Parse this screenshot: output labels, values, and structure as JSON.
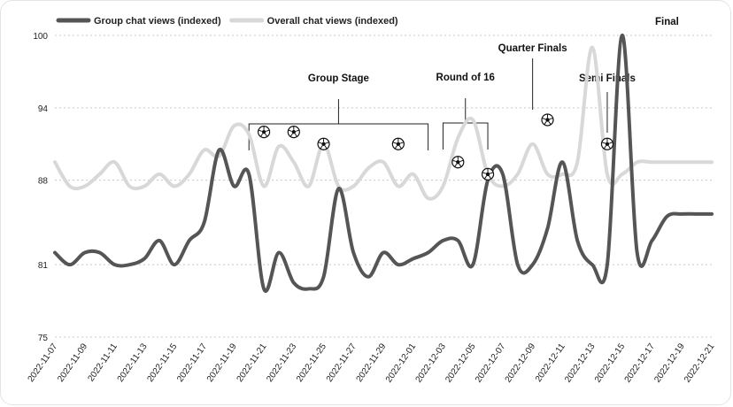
{
  "chart_data": {
    "type": "line",
    "title": "",
    "xlabel": "",
    "ylabel": "",
    "ylim": [
      75,
      100
    ],
    "yticks": [
      75,
      81,
      88,
      94,
      100
    ],
    "grid": "horizontal dotted",
    "legend_position": "top-left",
    "x": [
      "2022-11-07",
      "2022-11-08",
      "2022-11-09",
      "2022-11-10",
      "2022-11-11",
      "2022-11-12",
      "2022-11-13",
      "2022-11-14",
      "2022-11-15",
      "2022-11-16",
      "2022-11-17",
      "2022-11-18",
      "2022-11-19",
      "2022-11-20",
      "2022-11-21",
      "2022-11-22",
      "2022-11-23",
      "2022-11-24",
      "2022-11-25",
      "2022-11-26",
      "2022-11-27",
      "2022-11-28",
      "2022-11-29",
      "2022-11-30",
      "2022-12-01",
      "2022-12-02",
      "2022-12-03",
      "2022-12-04",
      "2022-12-05",
      "2022-12-06",
      "2022-12-07",
      "2022-12-08",
      "2022-12-09",
      "2022-12-10",
      "2022-12-11",
      "2022-12-12",
      "2022-12-13",
      "2022-12-14",
      "2022-12-15",
      "2022-12-16",
      "2022-12-17",
      "2022-12-18",
      "2022-12-19",
      "2022-12-20",
      "2022-12-21"
    ],
    "xtick_labels": [
      "2022-11-07",
      "2022-11-09",
      "2022-11-11",
      "2022-11-13",
      "2022-11-15",
      "2022-11-17",
      "2022-11-19",
      "2022-11-21",
      "2022-11-23",
      "2022-11-25",
      "2022-11-27",
      "2022-11-29",
      "2022-12-01",
      "2022-12-03",
      "2022-12-05",
      "2022-12-07",
      "2022-12-09",
      "2022-12-11",
      "2022-12-13",
      "2022-12-15",
      "2022-12-17",
      "2022-12-19",
      "2022-12-21"
    ],
    "series": [
      {
        "name": "Group chat views (indexed)",
        "color": "#555555",
        "values": [
          82.0,
          81.0,
          82.0,
          82.0,
          81.0,
          81.0,
          81.5,
          83.0,
          81.0,
          83.0,
          84.5,
          90.5,
          87.5,
          88.5,
          79.0,
          82.0,
          79.5,
          79.0,
          80.0,
          87.3,
          82.0,
          80.0,
          82.0,
          81.0,
          81.5,
          82.0,
          83.0,
          83.0,
          81.0,
          88.0,
          88.5,
          81.0,
          81.0,
          84.0,
          89.5,
          83.0,
          81.0,
          81.0,
          100.0,
          82.0,
          83.0,
          85.0,
          85.2,
          85.2,
          85.2
        ]
      },
      {
        "name": "Overall chat views (indexed)",
        "color": "#d8d8d8",
        "values": [
          89.5,
          87.5,
          87.5,
          88.5,
          89.5,
          87.5,
          87.5,
          88.5,
          87.5,
          88.5,
          90.5,
          90.0,
          92.5,
          91.8,
          87.5,
          90.8,
          89.5,
          87.5,
          91.0,
          87.5,
          87.5,
          89.0,
          89.5,
          87.5,
          88.5,
          86.5,
          87.5,
          91.5,
          93.0,
          88.5,
          87.5,
          88.5,
          91.0,
          88.5,
          88.5,
          89.5,
          99.0,
          88.5,
          88.5,
          89.5,
          89.5,
          89.5,
          89.5,
          89.5,
          89.5
        ]
      }
    ],
    "annotations": [
      {
        "label": "Group Stage",
        "from": "2022-11-20",
        "to": "2022-12-02"
      },
      {
        "label": "Round of 16",
        "from": "2022-12-03",
        "to": "2022-12-06"
      },
      {
        "label": "Quarter Finals",
        "at": "2022-12-09"
      },
      {
        "label": "Semi Finals",
        "at": "2022-12-14"
      },
      {
        "label": "Final",
        "at": "2022-12-18"
      }
    ],
    "match_marker_icon": "soccer-ball-icon",
    "match_markers": [
      {
        "x": "2022-11-21",
        "y": 92.0
      },
      {
        "x": "2022-11-23",
        "y": 92.0
      },
      {
        "x": "2022-11-25",
        "y": 91.0
      },
      {
        "x": "2022-11-30",
        "y": 91.0
      },
      {
        "x": "2022-12-04",
        "y": 89.5
      },
      {
        "x": "2022-12-06",
        "y": 88.5
      },
      {
        "x": "2022-12-10",
        "y": 93.0
      },
      {
        "x": "2022-12-14",
        "y": 91.0
      }
    ]
  }
}
